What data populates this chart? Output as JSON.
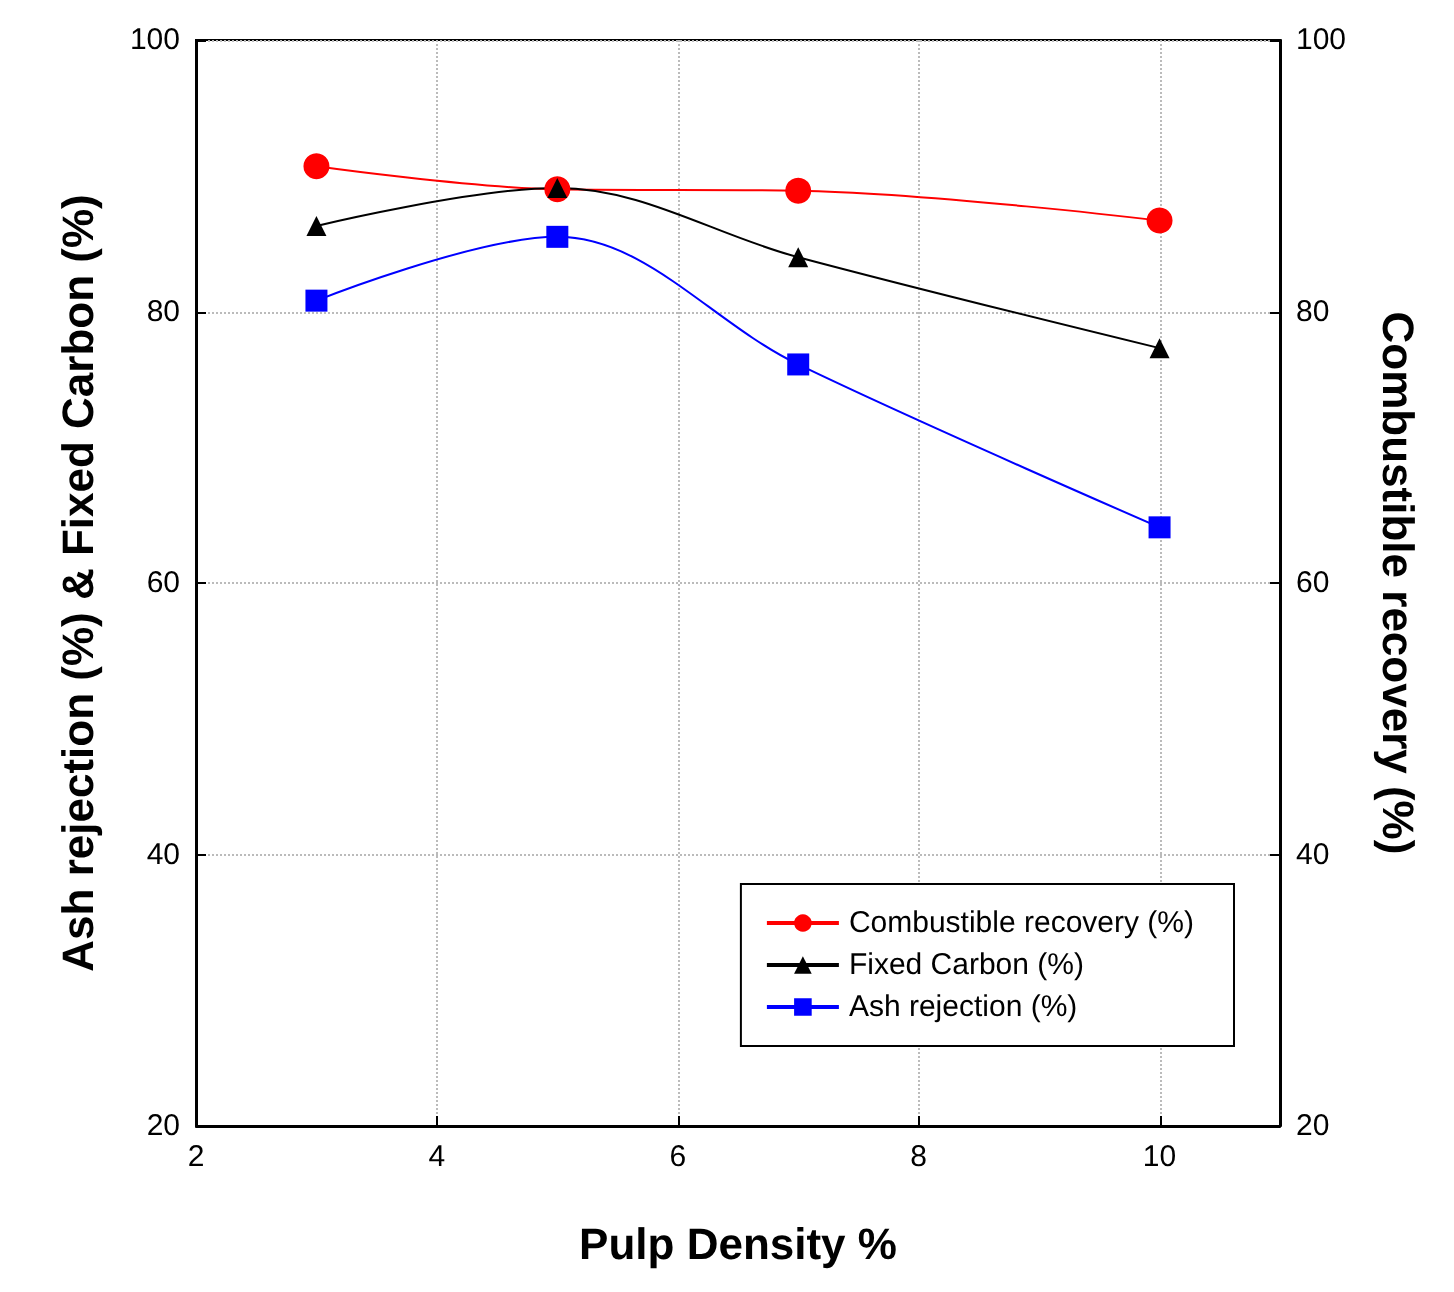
{
  "chart_data": {
    "type": "line",
    "xlabel": "Pulp Density %",
    "ylabel": "Ash rejection (%) & Fixed Carbon (%)",
    "y2label": "Combustible recovery (%)",
    "x": [
      3,
      5,
      7,
      10
    ],
    "series": [
      {
        "name": "Combustible recovery (%)",
        "color": "#ff0000",
        "marker": "circle",
        "axis": "y2",
        "values": [
          90.7,
          89.0,
          88.9,
          86.7
        ]
      },
      {
        "name": "Fixed Carbon (%)",
        "color": "#000000",
        "marker": "triangle",
        "values": [
          86.3,
          89.1,
          84.0,
          77.3
        ]
      },
      {
        "name": "Ash rejection (%)",
        "color": "#0000ff",
        "marker": "square",
        "values": [
          80.8,
          85.5,
          76.1,
          64.1
        ]
      }
    ],
    "xlim": [
      2,
      11
    ],
    "xticks": [
      2,
      4,
      6,
      8,
      10
    ],
    "ylim": [
      20,
      100
    ],
    "yticks": [
      20,
      40,
      60,
      80,
      100
    ],
    "y2lim": [
      20,
      100
    ],
    "y2ticks": [
      20,
      40,
      60,
      80,
      100
    ],
    "grid": true,
    "legend": "bottom right",
    "line_style": "solid"
  }
}
